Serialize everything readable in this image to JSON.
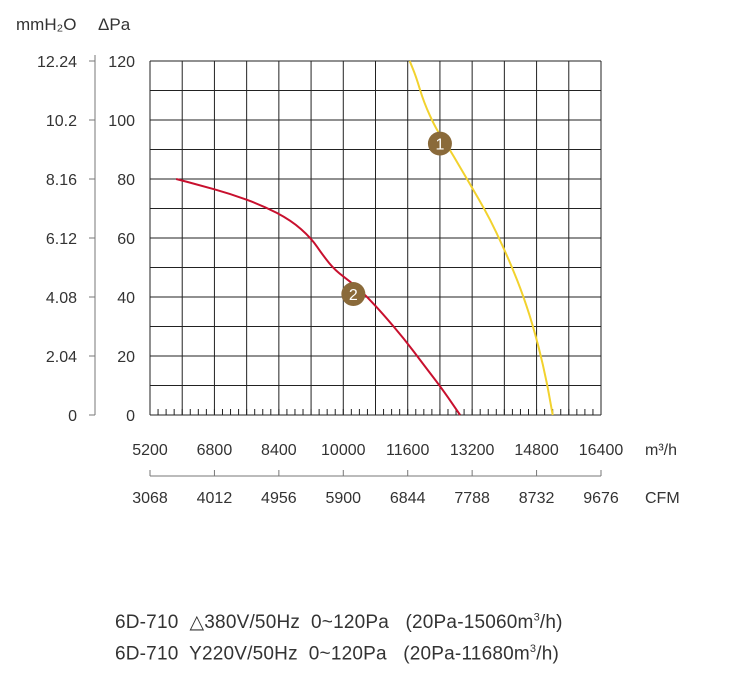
{
  "chart_data": {
    "type": "line",
    "left_axis_title": "mmH₂O",
    "right_axis_title": "ΔPa",
    "y_ticks_pa": [
      0,
      20,
      40,
      60,
      80,
      100,
      120
    ],
    "y_ticks_mmh2o": [
      "0",
      "2.04",
      "4.08",
      "6.12",
      "8.16",
      "10.2",
      "12.24"
    ],
    "ylim": [
      0,
      120
    ],
    "xlim": [
      5200,
      16400
    ],
    "x_ticks_m3h": [
      "5200",
      "6800",
      "8400",
      "10000",
      "11600",
      "13200",
      "14800",
      "16400"
    ],
    "x_unit_m3h": "m³/h",
    "x_ticks_cfm": [
      "3068",
      "4012",
      "4956",
      "5900",
      "6844",
      "7788",
      "8732",
      "9676"
    ],
    "x_unit_cfm": "CFM",
    "grid": true,
    "series": [
      {
        "marker_label": "1",
        "marker_at": [
          12400,
          92
        ],
        "color": "#f2d22e",
        "x": [
          11650,
          11800,
          12000,
          12300,
          12600,
          12900,
          13200,
          13500,
          13800,
          14100,
          14400,
          14700,
          15000,
          15200
        ],
        "y": [
          120,
          115,
          106,
          97,
          91,
          84,
          77,
          70,
          62,
          53,
          43,
          31,
          15,
          0
        ]
      },
      {
        "marker_label": "2",
        "marker_at": [
          10250,
          41
        ],
        "color": "#c8102e",
        "x": [
          5850,
          6400,
          7200,
          8000,
          8700,
          9200,
          9500,
          9800,
          10200,
          10600,
          11000,
          11500,
          12000,
          12500,
          12900
        ],
        "y": [
          80,
          78,
          75,
          71,
          66,
          60,
          54,
          49,
          45,
          40,
          34,
          26,
          17,
          8,
          0
        ]
      }
    ]
  },
  "legend": [
    {
      "model": "6D-710",
      "spec": "△380V/50Hz  0~120Pa",
      "range": "(20Pa-15060m",
      "sup": "3",
      "tail": "/h)"
    },
    {
      "model": "6D-710",
      "spec": "Y220V/50Hz  0~120Pa",
      "range": "(20Pa-11680m",
      "sup": "3",
      "tail": "/h)"
    }
  ]
}
